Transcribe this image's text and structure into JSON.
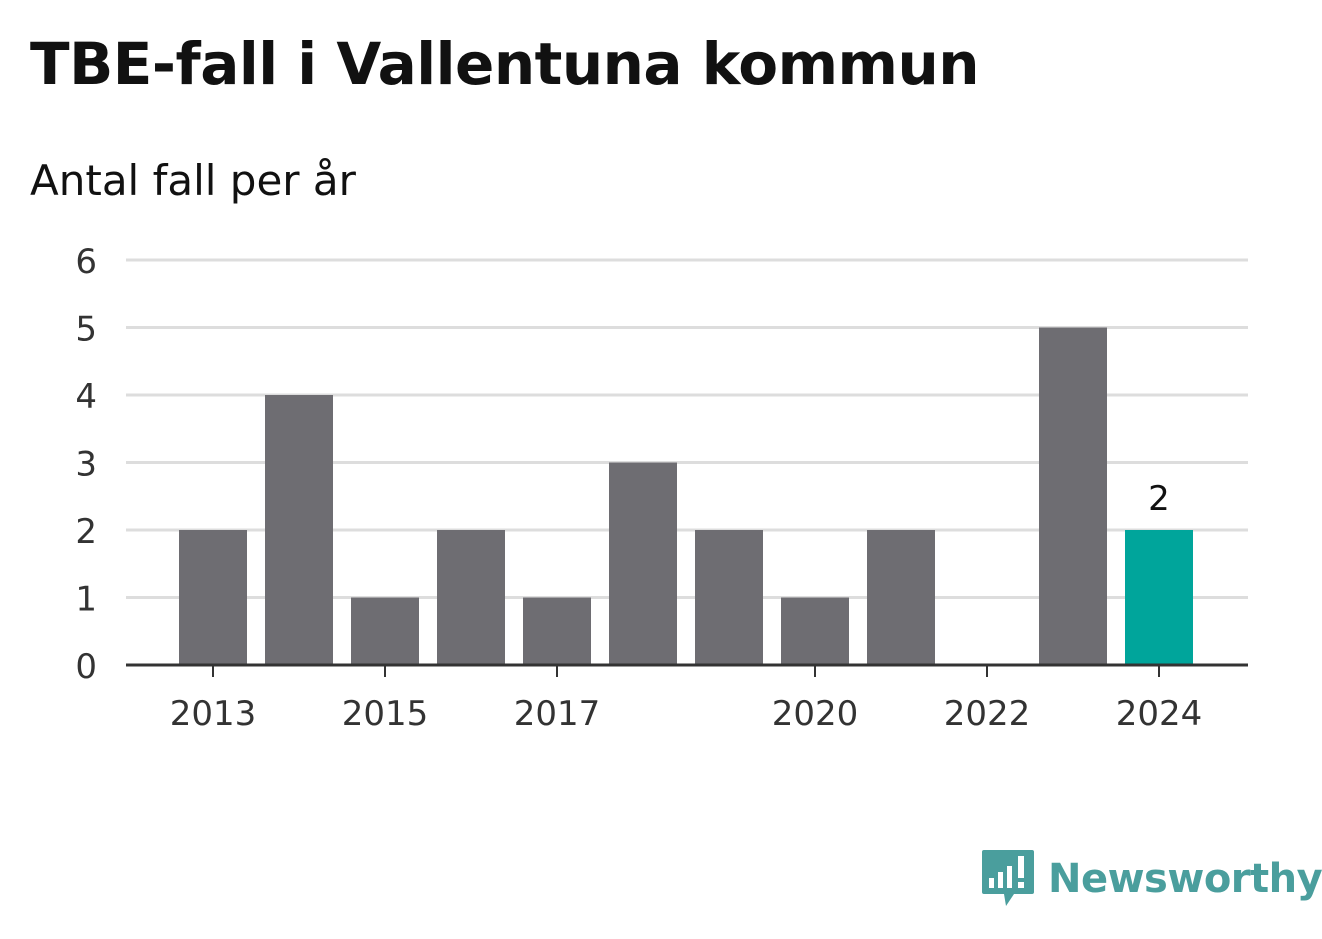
{
  "title": "TBE-fall i Vallentuna kommun",
  "subtitle": "Antal fall per år",
  "brand": {
    "name": "Newsworthy",
    "logo_icon": "bar-chart-speech-bubble-icon",
    "color": "#4a9e9d"
  },
  "colors": {
    "bar": "#6e6d72",
    "highlight": "#00a59b",
    "grid": "#dddddd",
    "axis": "#333333",
    "text": "#111111"
  },
  "chart_data": {
    "type": "bar",
    "categories": [
      "2013",
      "2014",
      "2015",
      "2016",
      "2017",
      "2018",
      "2019",
      "2020",
      "2021",
      "2022",
      "2023",
      "2024"
    ],
    "values": [
      2,
      4,
      1,
      2,
      1,
      3,
      2,
      1,
      2,
      0,
      5,
      2
    ],
    "x_tick_labels": [
      "2013",
      "2015",
      "2017",
      "2020",
      "2022",
      "2024"
    ],
    "y_ticks": [
      0,
      1,
      2,
      3,
      4,
      5,
      6
    ],
    "ylim": [
      0,
      6
    ],
    "highlight_category": "2024",
    "data_labels": [
      {
        "category": "2024",
        "text": "2"
      }
    ],
    "grid": true
  }
}
